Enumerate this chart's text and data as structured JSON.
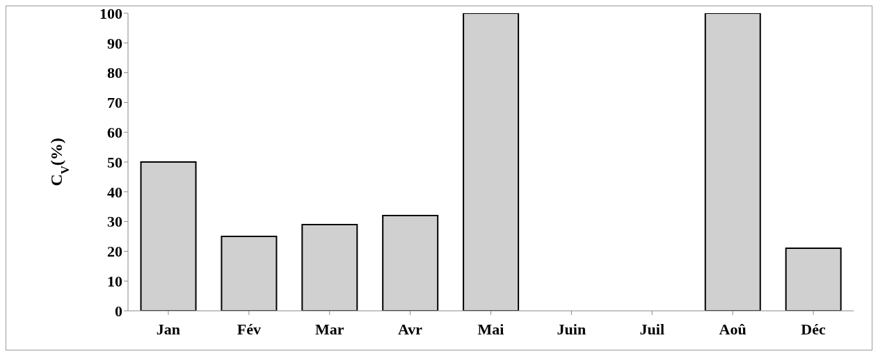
{
  "chart_data": {
    "type": "bar",
    "ylabel": "C$_{V}$(%)",
    "categories": [
      "Jan",
      "Fév",
      "Mar",
      "Avr",
      "Mai",
      "Juin",
      "Juil",
      "Aoû",
      "Déc"
    ],
    "values": [
      50,
      25,
      29,
      32,
      100,
      0,
      0,
      100,
      21
    ],
    "color": "#d0d0d0",
    "ylim": [
      0,
      100
    ],
    "yticks": [
      0,
      10,
      20,
      30,
      40,
      50,
      60,
      70,
      80,
      90,
      100
    ],
    "grid": false,
    "legend": false
  }
}
